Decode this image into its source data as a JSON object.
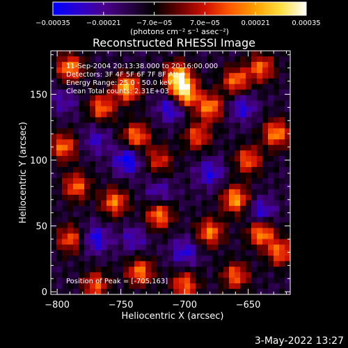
{
  "chart_data": {
    "type": "heatmap",
    "title": "Reconstructed RHESSI Image",
    "xlabel": "Heliocentric X (arcsec)",
    "ylabel": "Heliocentric Y (arcsec)",
    "xlim": [
      -805,
      -617
    ],
    "ylim": [
      -2,
      183
    ],
    "x_ticks": [
      -800,
      -750,
      -700,
      -650
    ],
    "x_tick_labels": [
      "−800",
      "−750",
      "−700",
      "−650"
    ],
    "y_ticks": [
      0,
      50,
      100,
      150
    ],
    "y_tick_labels": [
      "0",
      "50",
      "100",
      "150"
    ],
    "colorbar": {
      "range": [
        -0.00035,
        0.00035
      ],
      "ticks": [
        -0.00035,
        -0.00021,
        -7e-05,
        7e-05,
        0.00021,
        0.00035
      ],
      "tick_labels": [
        "−0.00035",
        "−0.00021",
        "−7.0e−05",
        "7.0e−05",
        "0.00021",
        "0.00035"
      ],
      "unit_label": "(photons cm⁻² s⁻¹ asec⁻²)",
      "colormap": [
        "#0000ff",
        "#2a00d0",
        "#4a0090",
        "#2a0048",
        "#000000",
        "#6a0000",
        "#d01000",
        "#ff5a00",
        "#ffa000",
        "#ffe040",
        "#ffffff"
      ]
    },
    "annotations": {
      "time": "11-Sep-2004 20:13:38.000 to 20:16:00.000",
      "detectors": "Detectors: 3F 4F 5F 6F 7F 8F  Att 0",
      "energy": "Energy Range: 25.0 - 50.0 keV",
      "clean": "Clean    Total counts: 2.31E+03",
      "peak": "Position of Peak = [-705,163]"
    },
    "peak_position": [
      -705,
      163
    ],
    "hot_spots": [
      {
        "x": -705,
        "y": 163,
        "v": 0.00035
      },
      {
        "x": -700,
        "y": 150,
        "v": 0.00033
      },
      {
        "x": -745,
        "y": 155,
        "v": 0.0003
      },
      {
        "x": -790,
        "y": 170,
        "v": 0.00026
      },
      {
        "x": -765,
        "y": 140,
        "v": 0.00022
      },
      {
        "x": -738,
        "y": 118,
        "v": 0.00024
      },
      {
        "x": -680,
        "y": 140,
        "v": 0.00025
      },
      {
        "x": -660,
        "y": 160,
        "v": 0.00023
      },
      {
        "x": -640,
        "y": 170,
        "v": 0.00022
      },
      {
        "x": -628,
        "y": 120,
        "v": 0.00026
      },
      {
        "x": -650,
        "y": 100,
        "v": 0.00021
      },
      {
        "x": -690,
        "y": 118,
        "v": 0.00019
      },
      {
        "x": -660,
        "y": 70,
        "v": 0.00028
      },
      {
        "x": -680,
        "y": 45,
        "v": 0.00024
      },
      {
        "x": -640,
        "y": 45,
        "v": 0.00027
      },
      {
        "x": -625,
        "y": 30,
        "v": 0.00022
      },
      {
        "x": -720,
        "y": 58,
        "v": 0.00025
      },
      {
        "x": -755,
        "y": 68,
        "v": 0.00024
      },
      {
        "x": -785,
        "y": 80,
        "v": 0.00022
      },
      {
        "x": -795,
        "y": 110,
        "v": 0.00023
      },
      {
        "x": -790,
        "y": 40,
        "v": 0.0002
      },
      {
        "x": -735,
        "y": 15,
        "v": 0.00024
      },
      {
        "x": -700,
        "y": 5,
        "v": 0.00022
      },
      {
        "x": -660,
        "y": 12,
        "v": 0.00021
      },
      {
        "x": -770,
        "y": 5,
        "v": 0.0002
      },
      {
        "x": -720,
        "y": 100,
        "v": 0.00016
      }
    ],
    "cold_spots": [
      {
        "x": -745,
        "y": 100,
        "v": -0.00028
      },
      {
        "x": -710,
        "y": 140,
        "v": -0.00026
      },
      {
        "x": -680,
        "y": 90,
        "v": -0.00022
      },
      {
        "x": -640,
        "y": 60,
        "v": -0.00024
      },
      {
        "x": -700,
        "y": 30,
        "v": -0.00022
      },
      {
        "x": -770,
        "y": 40,
        "v": -0.00024
      },
      {
        "x": -770,
        "y": 115,
        "v": -0.00018
      },
      {
        "x": -655,
        "y": 140,
        "v": -0.00022
      },
      {
        "x": -720,
        "y": 75,
        "v": -0.00018
      },
      {
        "x": -795,
        "y": 145,
        "v": -0.00016
      },
      {
        "x": -740,
        "y": 40,
        "v": -0.00018
      }
    ]
  },
  "footer": {
    "timestamp": "3-May-2022 13:27"
  }
}
